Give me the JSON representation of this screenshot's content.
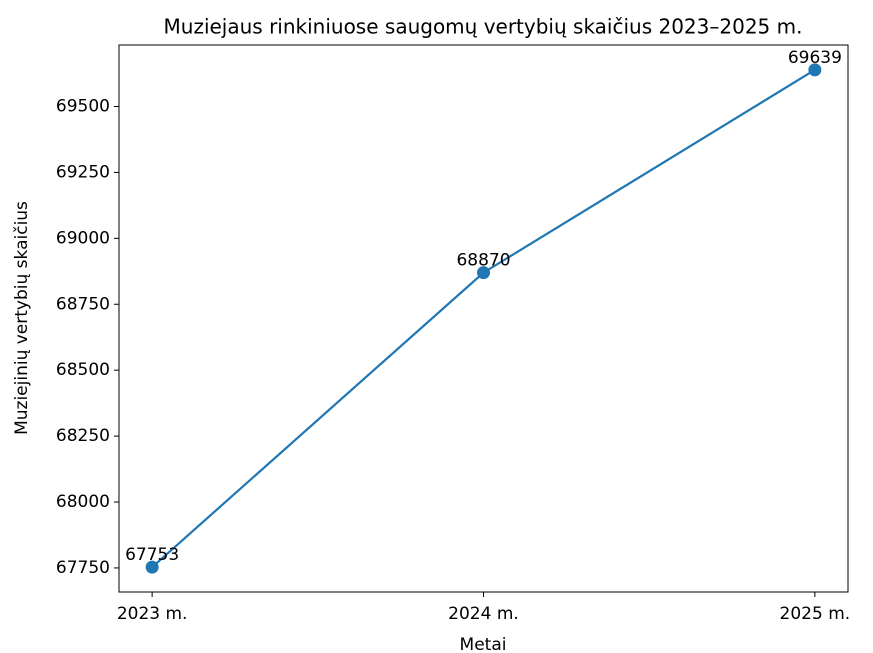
{
  "chart_data": {
    "type": "line",
    "title": "Muziejaus rinkiniuose saugomų vertybių skaičius 2023–2025 m.",
    "x_label": "Metai",
    "y_label": "Muziejinių vertybių skaičius",
    "categories": [
      "2023 m.",
      "2024 m.",
      "2025 m."
    ],
    "values": [
      67753,
      68870,
      69639
    ],
    "color": "#1f77b4",
    "ylim": [
      67658.7,
      69733.3
    ],
    "yticks": [
      67750,
      68000,
      68250,
      68500,
      68750,
      69000,
      69250,
      69500
    ],
    "grid": false
  }
}
